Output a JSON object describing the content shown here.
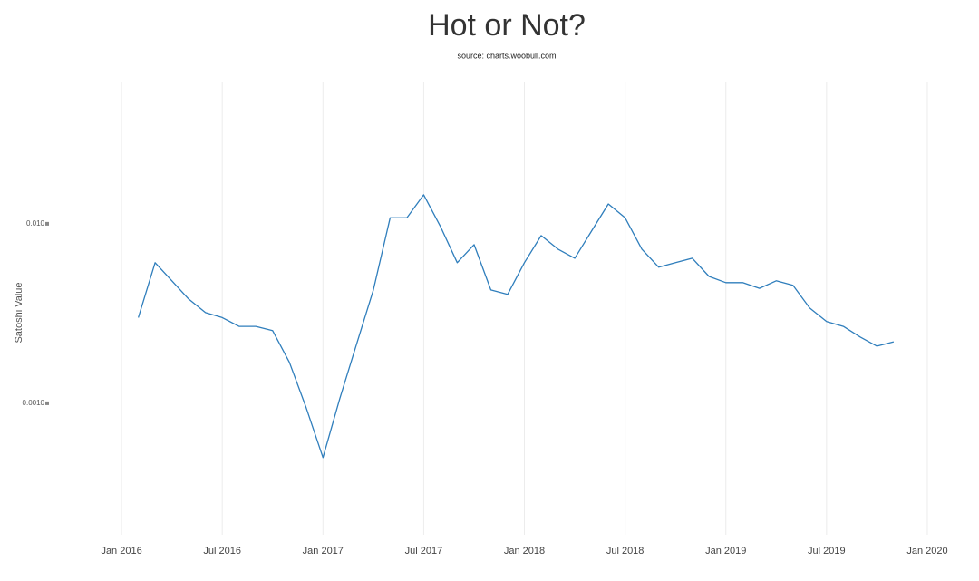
{
  "chart_data": {
    "type": "line",
    "title": "Hot or Not?",
    "subtitle": "source: charts.woobull.com",
    "y_label": "Satoshi Value",
    "log_y": true,
    "xgrid": true,
    "ygrid": false,
    "color": "#2f7ebc",
    "x": [
      "2016-02",
      "2016-03",
      "2016-04",
      "2016-05",
      "2016-06",
      "2016-07",
      "2016-08",
      "2016-09",
      "2016-10",
      "2016-11",
      "2016-12",
      "2017-01",
      "2017-02",
      "2017-03",
      "2017-04",
      "2017-05",
      "2017-06",
      "2017-07",
      "2017-08",
      "2017-09",
      "2017-10",
      "2017-11",
      "2017-12",
      "2018-01",
      "2018-02",
      "2018-03",
      "2018-04",
      "2018-05",
      "2018-06",
      "2018-07",
      "2018-08",
      "2018-09",
      "2018-10",
      "2018-11",
      "2018-12",
      "2019-01",
      "2019-02",
      "2019-03",
      "2019-04",
      "2019-05",
      "2019-06",
      "2019-07",
      "2019-08",
      "2019-09",
      "2019-10",
      "2019-11"
    ],
    "values": [
      0.003,
      0.00607,
      0.00481,
      0.00381,
      0.0032,
      0.003,
      0.00268,
      0.00268,
      0.00254,
      0.00169,
      0.000944,
      0.000498,
      0.00106,
      0.00213,
      0.00428,
      0.0108,
      0.0108,
      0.0145,
      0.00966,
      0.00607,
      0.00765,
      0.00428,
      0.00404,
      0.00607,
      0.0086,
      0.00722,
      0.00643,
      0.00911,
      0.0129,
      0.0108,
      0.00722,
      0.00573,
      0.00607,
      0.00643,
      0.00509,
      0.0047,
      0.0047,
      0.00437,
      0.00481,
      0.00454,
      0.00339,
      0.00285,
      0.00268,
      0.00234,
      0.00208,
      0.0022
    ],
    "xlim": [
      "2015-09",
      "2020-03"
    ],
    "xticks": [
      {
        "value": "2016-01",
        "label": "Jan 2016"
      },
      {
        "value": "2016-07",
        "label": "Jul 2016"
      },
      {
        "value": "2017-01",
        "label": "Jan 2017"
      },
      {
        "value": "2017-07",
        "label": "Jul 2017"
      },
      {
        "value": "2018-01",
        "label": "Jan 2018"
      },
      {
        "value": "2018-07",
        "label": "Jul 2018"
      },
      {
        "value": "2019-01",
        "label": "Jan 2019"
      },
      {
        "value": "2019-07",
        "label": "Jul 2019"
      },
      {
        "value": "2020-01",
        "label": "Jan 2020"
      }
    ],
    "ylim": [
      0.000185,
      0.062
    ],
    "yticks": [
      {
        "value": 0.001,
        "label": "0.0010"
      },
      {
        "value": 0.01,
        "label": "0.010"
      }
    ]
  }
}
